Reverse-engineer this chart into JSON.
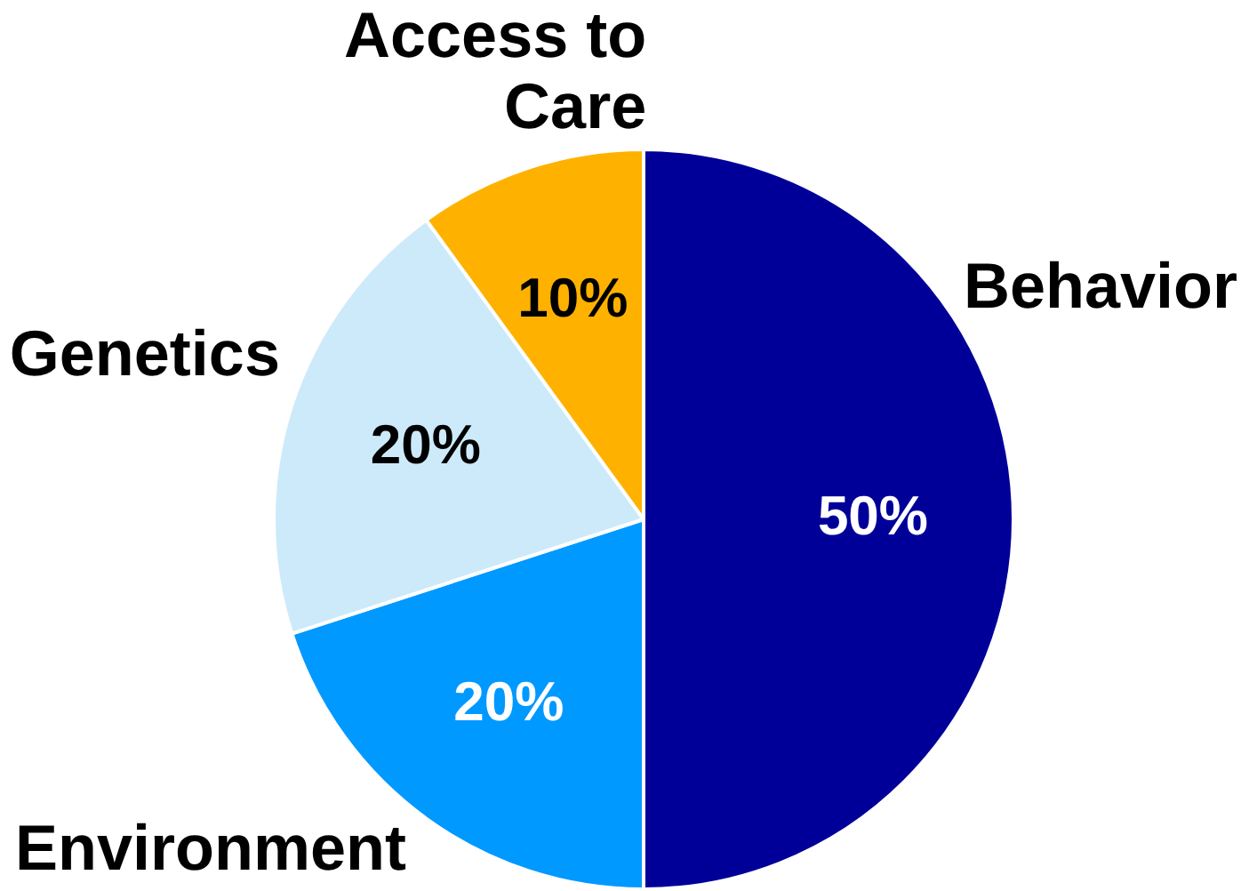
{
  "chart_data": {
    "type": "pie",
    "categories": [
      "Behavior",
      "Environment",
      "Genetics",
      "Access to Care"
    ],
    "values": [
      50,
      20,
      20,
      10
    ],
    "colors": [
      "#000099",
      "#0099ff",
      "#cdeafa",
      "#ffb100"
    ],
    "value_labels": [
      "50%",
      "20%",
      "20%",
      "10%"
    ],
    "legend": false
  }
}
